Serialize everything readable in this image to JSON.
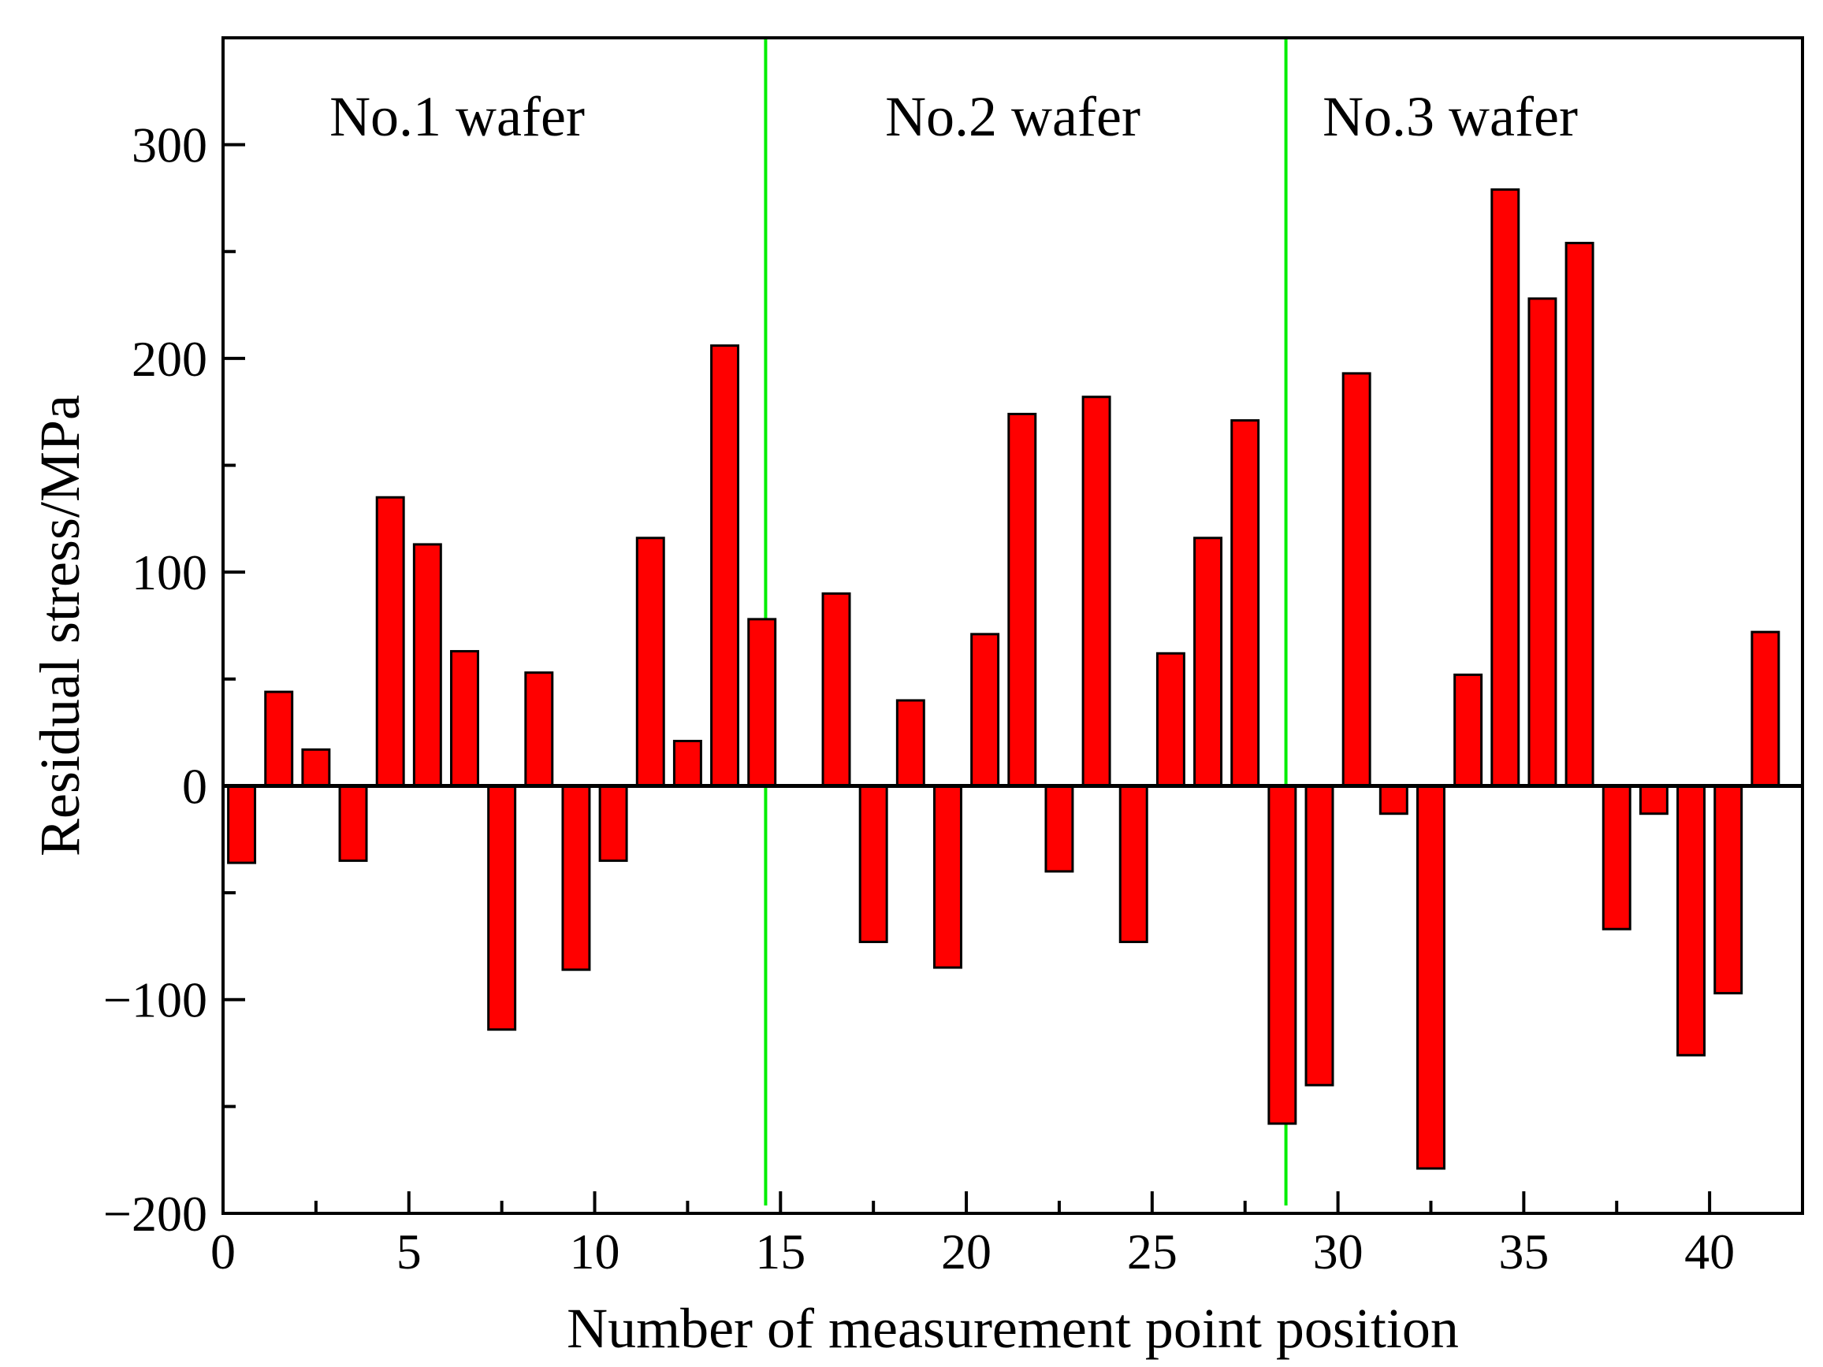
{
  "chart_data": {
    "type": "bar",
    "title": "",
    "xlabel": "Number of measurement point position",
    "ylabel": "Residual stress/MPa",
    "xlim": [
      0,
      42.5
    ],
    "ylim": [
      -200,
      350
    ],
    "x_ticks": [
      "0",
      "5",
      "10",
      "15",
      "20",
      "25",
      "30",
      "35",
      "40"
    ],
    "y_ticks": [
      "300",
      "200",
      "100",
      "0",
      "−100",
      "−200"
    ],
    "x_tick_values": [
      0,
      5,
      10,
      15,
      20,
      25,
      30,
      35,
      40
    ],
    "y_tick_values": [
      300,
      200,
      100,
      0,
      -100,
      -200
    ],
    "regions": [
      {
        "label": "No.1 wafer",
        "x_start": 0,
        "x_end": 14.6
      },
      {
        "label": "No.2 wafer",
        "x_start": 14.6,
        "x_end": 28.6
      },
      {
        "label": "No.3 wafer",
        "x_start": 28.6,
        "x_end": 42.5
      }
    ],
    "dividers": [
      14.6,
      28.6
    ],
    "series": [
      {
        "name": "Residual stress",
        "x": [
          0.5,
          1.5,
          2.5,
          3.5,
          4.5,
          5.5,
          6.5,
          7.5,
          8.5,
          9.5,
          10.5,
          11.5,
          12.5,
          13.5,
          14.5,
          15.5,
          16.5,
          17.5,
          18.5,
          19.5,
          20.5,
          21.5,
          22.5,
          23.5,
          24.5,
          25.5,
          26.5,
          27.5,
          28.5,
          29.5,
          30.5,
          31.5,
          32.5,
          33.5,
          34.5,
          35.5,
          36.5,
          37.5,
          38.5,
          39.5,
          40.5,
          41.5
        ],
        "values": [
          -36,
          44,
          17,
          -35,
          135,
          113,
          63,
          -114,
          53,
          -86,
          -35,
          116,
          21,
          206,
          78,
          null,
          90,
          -73,
          40,
          -85,
          71,
          174,
          -40,
          182,
          -73,
          62,
          116,
          171,
          -158,
          -140,
          193,
          -13,
          -179,
          52,
          279,
          228,
          254,
          -67,
          -13,
          -126,
          -97,
          72
        ]
      }
    ],
    "bar_color": "#ff0000",
    "bar_edge_color": "#000000",
    "divider_color": "#00ee00",
    "grid": false
  }
}
